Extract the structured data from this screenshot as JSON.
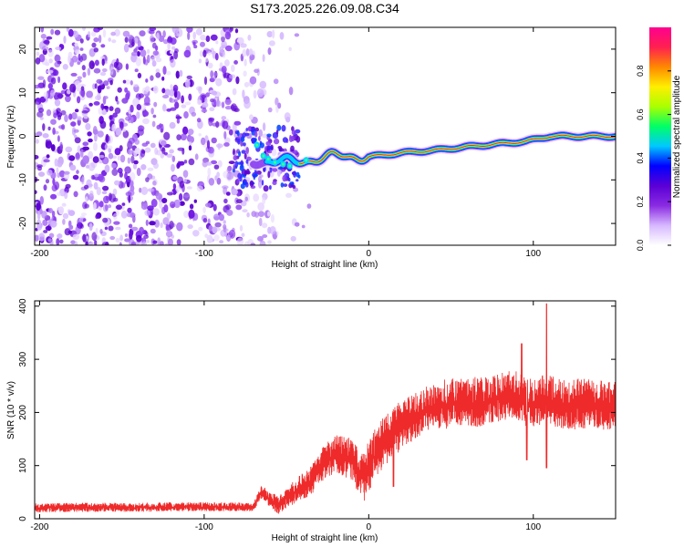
{
  "figure": {
    "title": "S173.2025.226.09.08.C34"
  },
  "chart_data": [
    {
      "type": "heatmap",
      "xlabel": "Height of straight line (km)",
      "ylabel": "Frequency (Hz)",
      "xlim": [
        -203,
        150
      ],
      "ylim": [
        -25,
        25
      ],
      "xticks": [
        -200,
        -100,
        0,
        100
      ],
      "yticks": [
        -20,
        -10,
        0,
        10,
        20
      ],
      "colorbar": {
        "label": "Normalized spectral amplitude",
        "range": [
          0,
          1
        ],
        "ticks": [
          "0.0",
          "0.2",
          "0.4",
          "0.6",
          "0.8"
        ],
        "colors": [
          "#ffffff",
          "#d7b8ff",
          "#8a2be2",
          "#5b00d6",
          "#0000ff",
          "#00c8ff",
          "#00ff66",
          "#aaff00",
          "#ffee00",
          "#ff8800",
          "#ff2050",
          "#ff0090"
        ]
      },
      "ridge": {
        "description_points_x": [
          -75,
          -60,
          -45,
          -30,
          -15,
          0,
          20,
          40,
          60,
          80,
          95,
          110,
          150
        ],
        "description_points_y": [
          -6,
          -5.5,
          -6,
          -5,
          -4.5,
          -4.7,
          -3.8,
          -3.2,
          -2.4,
          -1.7,
          -1.2,
          0,
          0
        ]
      },
      "noise_region_x": [
        -203,
        -45
      ]
    },
    {
      "type": "line",
      "xlabel": "Height of straight line (km)",
      "ylabel": "SNR (10 * v/v)",
      "xlim": [
        -203,
        150
      ],
      "ylim": [
        0,
        410
      ],
      "xticks": [
        -200,
        -100,
        0,
        100
      ],
      "yticks": [
        0,
        100,
        200,
        300,
        400
      ],
      "color": "#ee2a2a",
      "series": [
        {
          "name": "",
          "x": [
            -203,
            -180,
            -160,
            -140,
            -120,
            -100,
            -90,
            -80,
            -70,
            -65,
            -60,
            -55,
            -50,
            -45,
            -40,
            -35,
            -30,
            -25,
            -20,
            -15,
            -10,
            -5,
            0,
            5,
            10,
            15,
            20,
            30,
            40,
            50,
            60,
            70,
            80,
            90,
            95,
            100,
            104,
            108,
            110,
            115,
            120,
            130,
            140,
            150
          ],
          "y": [
            20,
            21,
            21,
            21,
            22,
            22,
            22,
            22,
            22,
            50,
            35,
            25,
            38,
            50,
            60,
            70,
            95,
            110,
            120,
            115,
            110,
            80,
            100,
            125,
            145,
            160,
            175,
            195,
            210,
            215,
            220,
            215,
            225,
            230,
            220,
            215,
            220,
            230,
            220,
            215,
            210,
            215,
            210,
            210
          ]
        }
      ]
    }
  ]
}
